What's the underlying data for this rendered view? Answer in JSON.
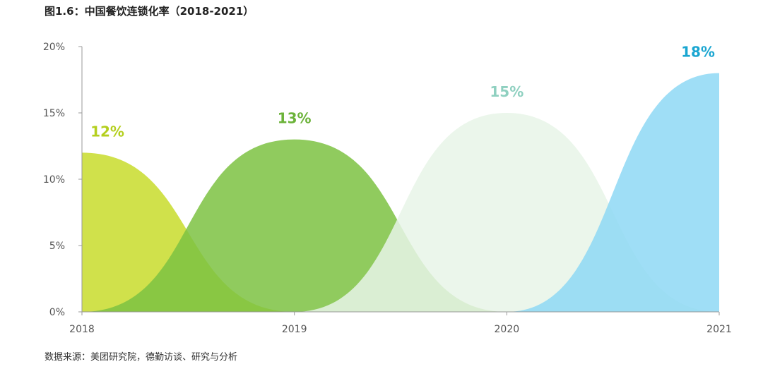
{
  "title": "图1.6：中国餐饮连锁化率（2018-2021）",
  "source": "数据来源：美团研究院，德勤访谈、研究与分析",
  "chart_data": {
    "type": "area",
    "title": "图1.6：中国餐饮连锁化率（2018-2021）",
    "categories": [
      "2018",
      "2019",
      "2020",
      "2021"
    ],
    "values": [
      12,
      13,
      15,
      18
    ],
    "data_labels": [
      "12%",
      "13%",
      "15%",
      "18%"
    ],
    "colors": [
      "#c8dc2c",
      "#7cc242",
      "#e8f4e8",
      "#8ed8f5"
    ],
    "label_colors": [
      "#b4cf1e",
      "#6cb33a",
      "#8fd0c0",
      "#1aa6d1"
    ],
    "ylim": [
      0,
      20
    ],
    "yticks": [
      "0%",
      "5%",
      "10%",
      "15%",
      "20%"
    ],
    "grid": false,
    "legend": "none"
  }
}
